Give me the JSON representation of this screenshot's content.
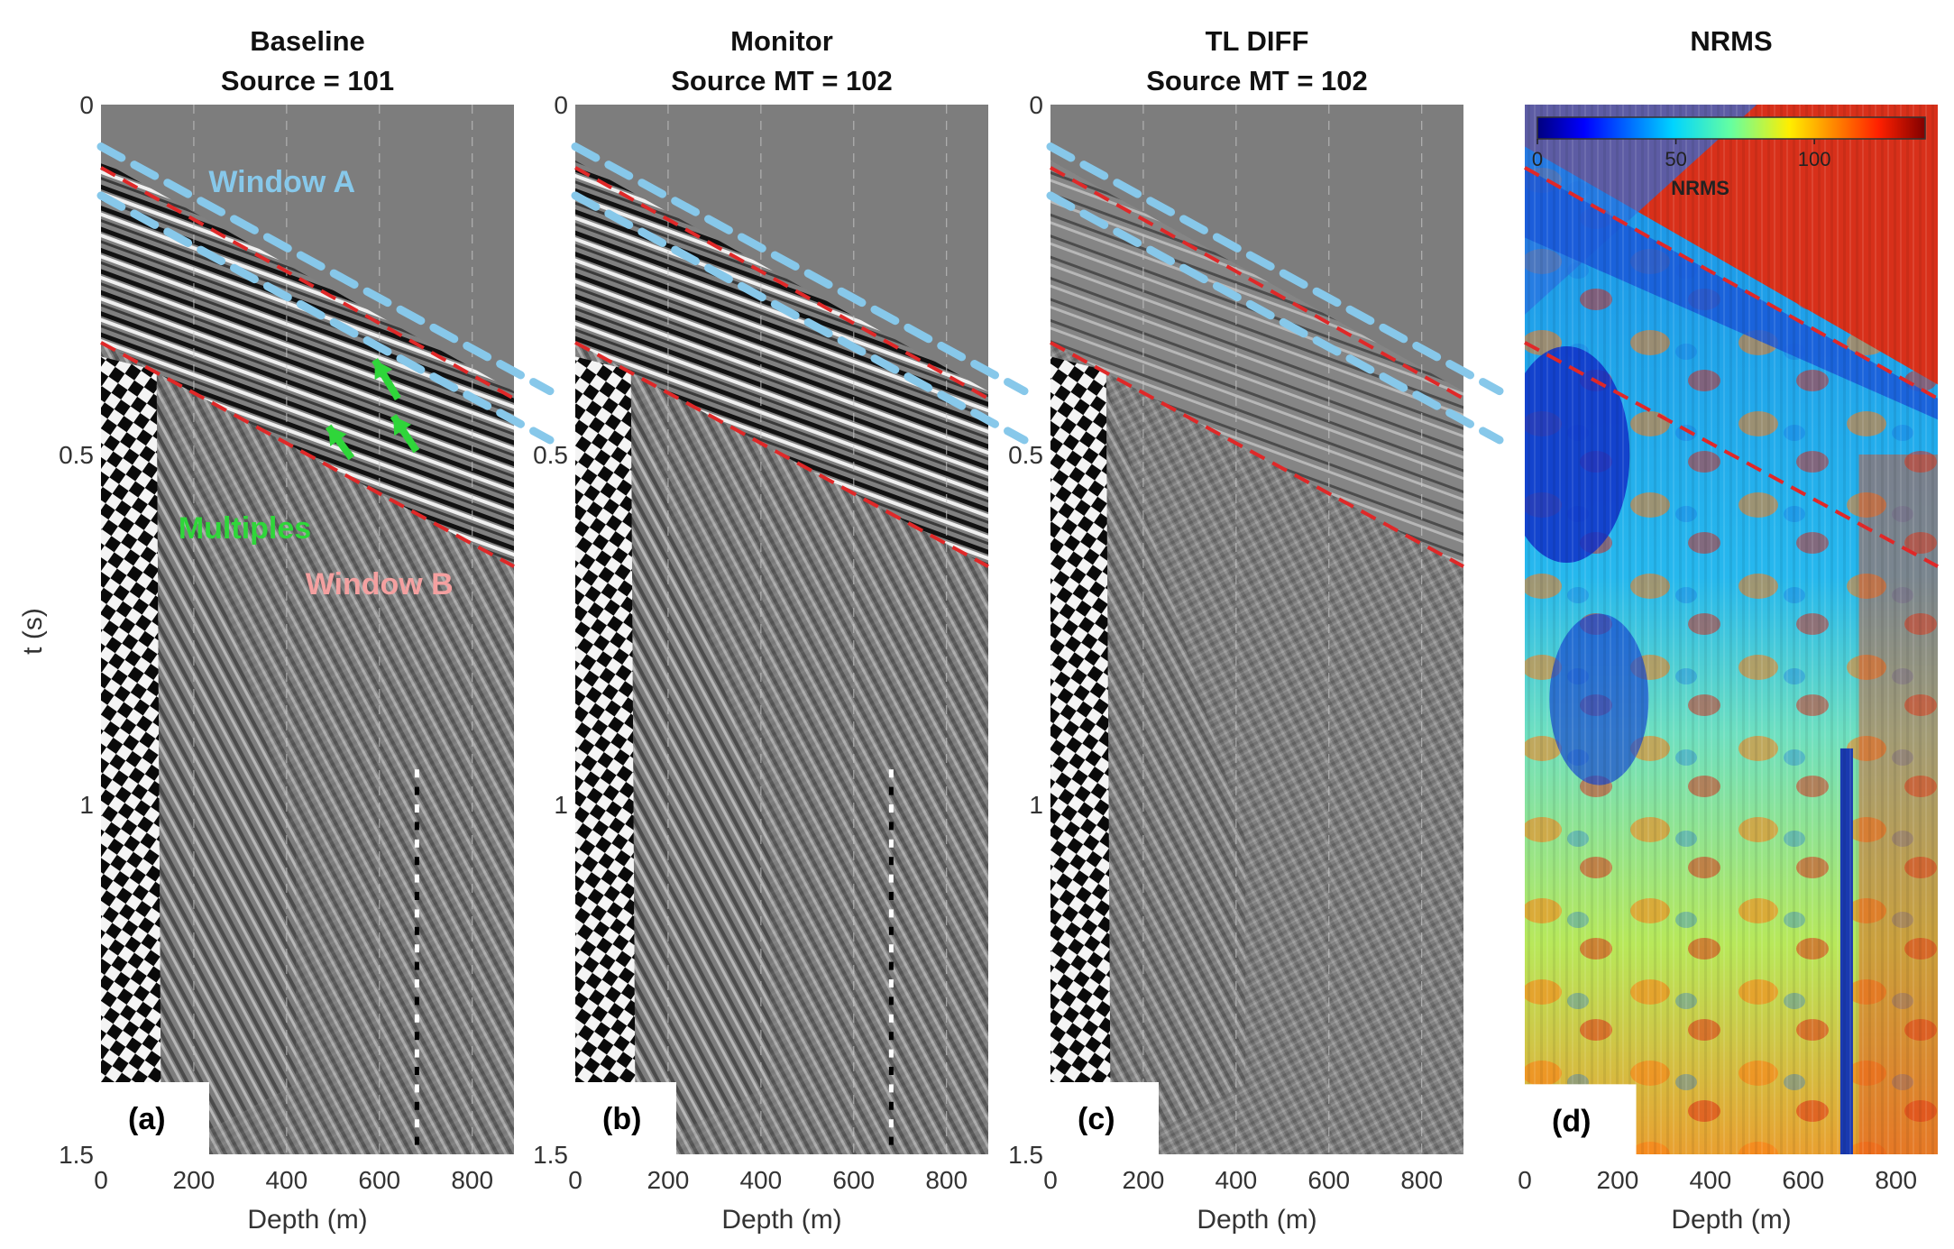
{
  "chart_data": [
    {
      "type": "heatmap",
      "panel": "(a)",
      "title": [
        "Baseline",
        "Source = 101"
      ],
      "xlabel": "Depth (m)",
      "ylabel": "t (s)",
      "xlim": [
        0,
        890
      ],
      "ylim": [
        1.5,
        0
      ],
      "xticks": [
        0,
        200,
        400,
        600,
        800
      ],
      "yticks": [
        0,
        0.5,
        1,
        1.5
      ],
      "colormap": "gray",
      "annotations": [
        {
          "text": "Window A",
          "color": "#87c8ea"
        },
        {
          "text": "Multiples",
          "color": "#2fd63a"
        },
        {
          "text": "Window B",
          "color": "#f4a0a0"
        }
      ]
    },
    {
      "type": "heatmap",
      "panel": "(b)",
      "title": [
        "Monitor",
        "Source MT = 102"
      ],
      "xlabel": "Depth (m)",
      "xlim": [
        0,
        890
      ],
      "ylim": [
        1.5,
        0
      ],
      "xticks": [
        0,
        200,
        400,
        600,
        800
      ],
      "yticks": [
        0,
        0.5,
        1,
        1.5
      ],
      "colormap": "gray"
    },
    {
      "type": "heatmap",
      "panel": "(c)",
      "title": [
        "TL DIFF",
        "Source MT = 102"
      ],
      "xlabel": "Depth (m)",
      "xlim": [
        0,
        890
      ],
      "ylim": [
        1.5,
        0
      ],
      "xticks": [
        0,
        200,
        400,
        600,
        800
      ],
      "yticks": [
        0,
        0.5,
        1,
        1.5
      ],
      "colormap": "gray"
    },
    {
      "type": "heatmap",
      "panel": "(d)",
      "title": [
        "NRMS"
      ],
      "xlabel": "Depth (m)",
      "xlim": [
        0,
        890
      ],
      "ylim": [
        1.5,
        0
      ],
      "xticks": [
        0,
        200,
        400,
        600,
        800
      ],
      "colormap": "jet",
      "colorbar": {
        "label": "NRMS",
        "ticks": [
          0,
          50,
          100
        ],
        "range": [
          0,
          140
        ]
      }
    }
  ],
  "windows": {
    "window_a_top": [
      [
        0,
        0.06
      ],
      [
        890,
        0.39
      ]
    ],
    "window_a_bottom": [
      [
        0,
        0.13
      ],
      [
        890,
        0.46
      ]
    ],
    "window_b_top": [
      [
        0,
        0.09
      ],
      [
        890,
        0.42
      ]
    ],
    "window_b_bottom": [
      [
        0,
        0.34
      ],
      [
        890,
        0.66
      ]
    ]
  },
  "colors": {
    "window_a": "#87c8ea",
    "window_b": "#e02828",
    "multiples_arrow": "#2fd63a",
    "seismic_gray": "#7a7a7a"
  }
}
